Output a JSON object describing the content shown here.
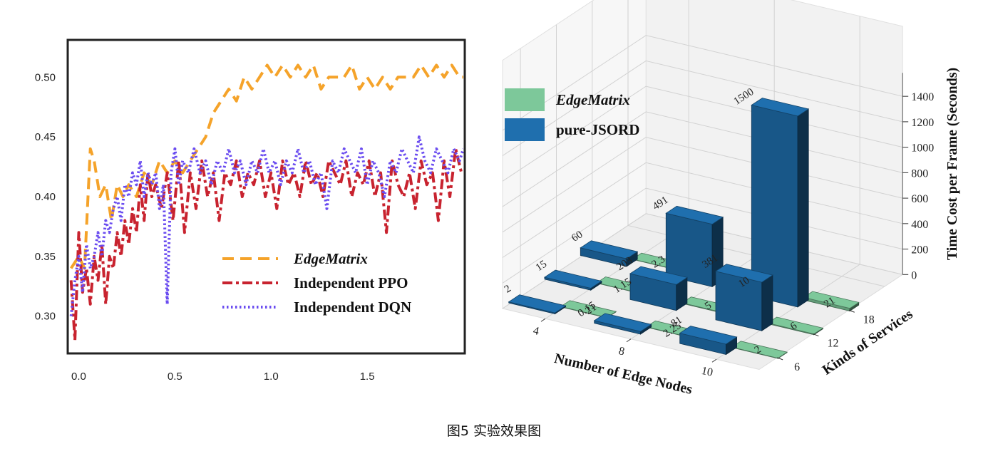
{
  "caption": "图5 实验效果图",
  "chart_data": [
    {
      "type": "line",
      "title": "",
      "xlabel": "",
      "ylabel": "",
      "xlim": [
        -0.05,
        2.0
      ],
      "ylim": [
        0.27,
        0.53
      ],
      "xticks": [
        "0.0",
        "0.5",
        "1.0",
        "1.5"
      ],
      "yticks": [
        "0.30",
        "0.35",
        "0.40",
        "0.45",
        "0.50"
      ],
      "legend_position": "lower-right",
      "series": [
        {
          "name": "EdgeMatrix",
          "color": "#f5a32a",
          "x": [
            -0.04,
            0.0,
            0.03,
            0.06,
            0.08,
            0.11,
            0.14,
            0.17,
            0.2,
            0.23,
            0.26,
            0.3,
            0.34,
            0.38,
            0.42,
            0.46,
            0.5,
            0.54,
            0.58,
            0.62,
            0.66,
            0.7,
            0.74,
            0.78,
            0.82,
            0.86,
            0.9,
            0.94,
            0.98,
            1.02,
            1.06,
            1.1,
            1.14,
            1.18,
            1.22,
            1.26,
            1.3,
            1.34,
            1.38,
            1.42,
            1.46,
            1.5,
            1.54,
            1.58,
            1.62,
            1.66,
            1.7,
            1.74,
            1.78,
            1.82,
            1.86,
            1.9,
            1.94,
            1.98,
            2.0
          ],
          "y": [
            0.34,
            0.35,
            0.34,
            0.44,
            0.43,
            0.4,
            0.41,
            0.38,
            0.41,
            0.4,
            0.41,
            0.4,
            0.42,
            0.41,
            0.43,
            0.42,
            0.43,
            0.42,
            0.43,
            0.44,
            0.45,
            0.47,
            0.48,
            0.49,
            0.48,
            0.5,
            0.49,
            0.5,
            0.51,
            0.5,
            0.51,
            0.5,
            0.51,
            0.5,
            0.51,
            0.49,
            0.5,
            0.5,
            0.5,
            0.51,
            0.49,
            0.5,
            0.49,
            0.5,
            0.49,
            0.5,
            0.5,
            0.5,
            0.51,
            0.5,
            0.51,
            0.5,
            0.51,
            0.5,
            0.5
          ]
        },
        {
          "name": "Independent PPO",
          "color": "#c8232f",
          "x": [
            -0.04,
            -0.02,
            0.0,
            0.02,
            0.04,
            0.06,
            0.08,
            0.1,
            0.12,
            0.14,
            0.16,
            0.18,
            0.2,
            0.22,
            0.24,
            0.26,
            0.28,
            0.3,
            0.32,
            0.34,
            0.36,
            0.38,
            0.4,
            0.43,
            0.46,
            0.49,
            0.52,
            0.55,
            0.58,
            0.61,
            0.64,
            0.67,
            0.7,
            0.73,
            0.76,
            0.79,
            0.82,
            0.85,
            0.88,
            0.91,
            0.94,
            0.97,
            1.0,
            1.03,
            1.06,
            1.09,
            1.12,
            1.15,
            1.18,
            1.21,
            1.24,
            1.27,
            1.3,
            1.33,
            1.36,
            1.39,
            1.42,
            1.45,
            1.48,
            1.51,
            1.54,
            1.57,
            1.6,
            1.63,
            1.66,
            1.69,
            1.72,
            1.75,
            1.78,
            1.81,
            1.84,
            1.87,
            1.9,
            1.93,
            1.96,
            1.99
          ],
          "y": [
            0.33,
            0.28,
            0.37,
            0.32,
            0.34,
            0.31,
            0.35,
            0.33,
            0.36,
            0.31,
            0.35,
            0.34,
            0.37,
            0.35,
            0.38,
            0.36,
            0.39,
            0.37,
            0.41,
            0.38,
            0.42,
            0.4,
            0.41,
            0.39,
            0.42,
            0.38,
            0.43,
            0.37,
            0.42,
            0.39,
            0.43,
            0.4,
            0.42,
            0.38,
            0.42,
            0.41,
            0.43,
            0.4,
            0.42,
            0.41,
            0.43,
            0.4,
            0.42,
            0.39,
            0.43,
            0.41,
            0.42,
            0.4,
            0.43,
            0.41,
            0.42,
            0.4,
            0.43,
            0.42,
            0.41,
            0.43,
            0.4,
            0.42,
            0.41,
            0.43,
            0.4,
            0.42,
            0.37,
            0.43,
            0.41,
            0.4,
            0.42,
            0.39,
            0.43,
            0.41,
            0.42,
            0.38,
            0.43,
            0.4,
            0.44,
            0.42
          ]
        },
        {
          "name": "Independent DQN",
          "color": "#6a4cf0",
          "x": [
            -0.04,
            -0.02,
            0.0,
            0.02,
            0.04,
            0.06,
            0.08,
            0.1,
            0.12,
            0.14,
            0.16,
            0.18,
            0.2,
            0.22,
            0.24,
            0.26,
            0.28,
            0.3,
            0.32,
            0.34,
            0.36,
            0.38,
            0.4,
            0.42,
            0.44,
            0.46,
            0.48,
            0.5,
            0.52,
            0.54,
            0.57,
            0.6,
            0.63,
            0.66,
            0.69,
            0.72,
            0.75,
            0.78,
            0.81,
            0.84,
            0.87,
            0.9,
            0.93,
            0.96,
            0.99,
            1.02,
            1.05,
            1.08,
            1.11,
            1.14,
            1.17,
            1.2,
            1.23,
            1.26,
            1.29,
            1.32,
            1.35,
            1.38,
            1.41,
            1.44,
            1.47,
            1.5,
            1.53,
            1.56,
            1.59,
            1.62,
            1.65,
            1.68,
            1.71,
            1.74,
            1.77,
            1.8,
            1.83,
            1.86,
            1.89,
            1.92,
            1.95,
            1.98,
            2.0
          ],
          "y": [
            0.3,
            0.33,
            0.35,
            0.32,
            0.36,
            0.34,
            0.35,
            0.37,
            0.35,
            0.38,
            0.37,
            0.39,
            0.4,
            0.38,
            0.41,
            0.4,
            0.42,
            0.41,
            0.43,
            0.4,
            0.42,
            0.41,
            0.42,
            0.39,
            0.41,
            0.31,
            0.42,
            0.44,
            0.41,
            0.43,
            0.42,
            0.44,
            0.42,
            0.43,
            0.41,
            0.43,
            0.42,
            0.44,
            0.42,
            0.43,
            0.41,
            0.43,
            0.42,
            0.44,
            0.42,
            0.43,
            0.41,
            0.43,
            0.42,
            0.44,
            0.42,
            0.43,
            0.41,
            0.42,
            0.39,
            0.43,
            0.42,
            0.44,
            0.43,
            0.42,
            0.44,
            0.41,
            0.43,
            0.42,
            0.4,
            0.43,
            0.42,
            0.44,
            0.43,
            0.42,
            0.45,
            0.43,
            0.42,
            0.44,
            0.43,
            0.42,
            0.44,
            0.43,
            0.44
          ]
        }
      ]
    },
    {
      "type": "bar",
      "subtype": "3d-bar",
      "xlabel": "Number of Edge Nodes",
      "ylabel": "Kinds of Services",
      "zlabel": "Time Cost per Frame (Seconds)",
      "zlim": [
        0,
        1500
      ],
      "xticks": [
        "4",
        "8",
        "10"
      ],
      "yticks": [
        "6",
        "12",
        "18"
      ],
      "zticks": [
        "0",
        "200",
        "400",
        "600",
        "800",
        "1000",
        "1200",
        "1400"
      ],
      "legend_position": "upper-left",
      "series": [
        {
          "name": "EdgeMatrix",
          "color": "#7dc89a",
          "values": [
            [
              0.15,
              1.15,
              2.3
            ],
            [
              2.25,
              5,
              10
            ],
            [
              2,
              6,
              21
            ]
          ],
          "labels": [
            [
              "0.15",
              "1.15",
              "2.3"
            ],
            [
              "2.25",
              "5",
              "10"
            ],
            [
              "2",
              "6",
              "21"
            ]
          ]
        },
        {
          "name": "pure-JSORD",
          "color": "#1f6fae",
          "values": [
            [
              2,
              15,
              60
            ],
            [
              21,
              203,
              491
            ],
            [
              81,
              381,
              1500
            ]
          ],
          "labels": [
            [
              "2",
              "15",
              "60"
            ],
            [
              "21",
              "203",
              "491"
            ],
            [
              "81",
              "381",
              "1500"
            ]
          ]
        }
      ]
    }
  ]
}
